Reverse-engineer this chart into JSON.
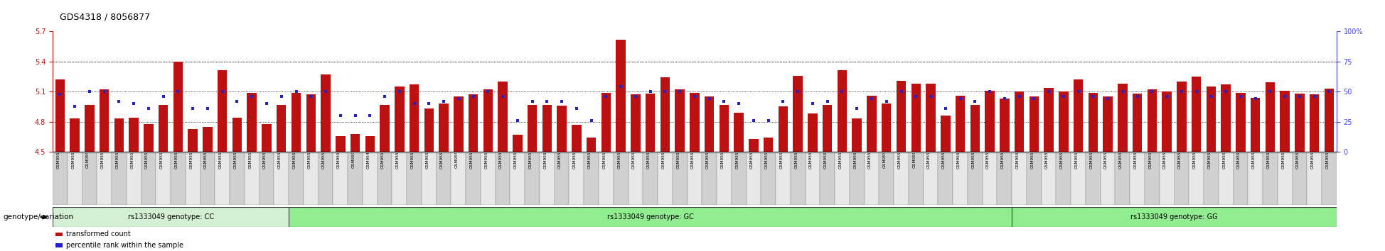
{
  "title": "GDS4318 / 8056877",
  "ylim_left": [
    4.5,
    5.7
  ],
  "ylim_right": [
    0,
    100
  ],
  "yticks_left": [
    4.5,
    4.8,
    5.1,
    5.4,
    5.7
  ],
  "yticks_right": [
    0,
    25,
    50,
    75,
    100
  ],
  "bar_color": "#bb1111",
  "dot_color": "#2222cc",
  "right_axis_color": "#4444ee",
  "samples": [
    "GSM955002",
    "GSM955008",
    "GSM955016",
    "GSM955019",
    "GSM955022",
    "GSM955023",
    "GSM955027",
    "GSM955043",
    "GSM955048",
    "GSM955049",
    "GSM955054",
    "GSM955064",
    "GSM955072",
    "GSM955075",
    "GSM955079",
    "GSM955087",
    "GSM955088",
    "GSM955089",
    "GSM955095",
    "GSM955097",
    "GSM955101",
    "GSM954999",
    "GSM955001",
    "GSM955003",
    "GSM955004",
    "GSM955005",
    "GSM955009",
    "GSM955011",
    "GSM955012",
    "GSM955013",
    "GSM955015",
    "GSM955017",
    "GSM955021",
    "GSM955025",
    "GSM955028",
    "GSM955029",
    "GSM955030",
    "GSM955032",
    "GSM955033",
    "GSM955034",
    "GSM955035",
    "GSM955036",
    "GSM955037",
    "GSM955039",
    "GSM955041",
    "GSM955042",
    "GSM955045",
    "GSM955046",
    "GSM955047",
    "GSM955050",
    "GSM955052",
    "GSM955053",
    "GSM955056",
    "GSM955058",
    "GSM955059",
    "GSM955060",
    "GSM955061",
    "GSM955065",
    "GSM955066",
    "GSM955067",
    "GSM955073",
    "GSM955074",
    "GSM955076",
    "GSM955078",
    "GSM955080",
    "GSM955006",
    "GSM955007",
    "GSM955010",
    "GSM955014",
    "GSM955018",
    "GSM955020",
    "GSM955024",
    "GSM955026",
    "GSM955031",
    "GSM955038",
    "GSM955040",
    "GSM955044",
    "GSM955051",
    "GSM955055",
    "GSM955057",
    "GSM955062",
    "GSM955063",
    "GSM955068",
    "GSM955069",
    "GSM955070",
    "GSM955071",
    "GSM955077"
  ],
  "bar_heights": [
    5.22,
    4.83,
    4.97,
    5.12,
    4.83,
    4.84,
    4.78,
    4.97,
    5.4,
    4.73,
    4.75,
    5.31,
    4.84,
    5.09,
    4.78,
    4.97,
    5.09,
    5.07,
    5.27,
    4.66,
    4.68,
    4.66,
    4.97,
    5.15,
    5.17,
    4.93,
    4.98,
    5.05,
    5.07,
    5.12,
    5.2,
    4.67,
    4.97,
    4.97,
    4.96,
    4.77,
    4.64,
    5.09,
    5.62,
    5.07,
    5.08,
    5.24,
    5.12,
    5.09,
    5.05,
    4.97,
    4.89,
    4.63,
    4.64,
    4.95,
    5.26,
    4.88,
    4.97,
    5.31,
    4.83,
    5.06,
    4.98,
    5.21,
    5.18,
    5.18,
    4.86,
    5.06,
    4.97,
    5.11,
    5.03,
    5.1,
    5.05,
    5.14,
    5.1,
    5.22,
    5.09,
    5.05,
    5.18,
    5.08,
    5.12,
    5.1,
    5.2,
    5.25,
    5.15,
    5.17,
    5.09,
    5.04,
    5.19,
    5.11,
    5.08,
    5.07,
    5.13
  ],
  "dot_percentiles": [
    48,
    38,
    50,
    50,
    42,
    40,
    36,
    46,
    50,
    36,
    36,
    50,
    42,
    46,
    40,
    46,
    50,
    46,
    50,
    30,
    30,
    30,
    46,
    50,
    40,
    40,
    42,
    44,
    46,
    50,
    46,
    26,
    42,
    42,
    42,
    36,
    26,
    46,
    54,
    46,
    50,
    50,
    50,
    46,
    44,
    42,
    40,
    26,
    26,
    42,
    50,
    40,
    42,
    50,
    36,
    44,
    42,
    50,
    46,
    46,
    36,
    44,
    42,
    50,
    44,
    46,
    44,
    50,
    46,
    50,
    46,
    44,
    50,
    46,
    50,
    46,
    50,
    50,
    46,
    50,
    46,
    44,
    50,
    46,
    46,
    46,
    50
  ],
  "genotype_groups": [
    {
      "label": "rs1333049 genotype: CC",
      "count": 16,
      "color": "#d4f0d4"
    },
    {
      "label": "rs1333049 genotype: GC",
      "count": 49,
      "color": "#90ee90"
    },
    {
      "label": "rs1333049 genotype: GG",
      "count": 22,
      "color": "#90ee90"
    }
  ],
  "genotype_label": "genotype/variation",
  "legend_items": [
    {
      "label": "transformed count",
      "color": "#bb1111"
    },
    {
      "label": "percentile rank within the sample",
      "color": "#2222cc"
    }
  ]
}
